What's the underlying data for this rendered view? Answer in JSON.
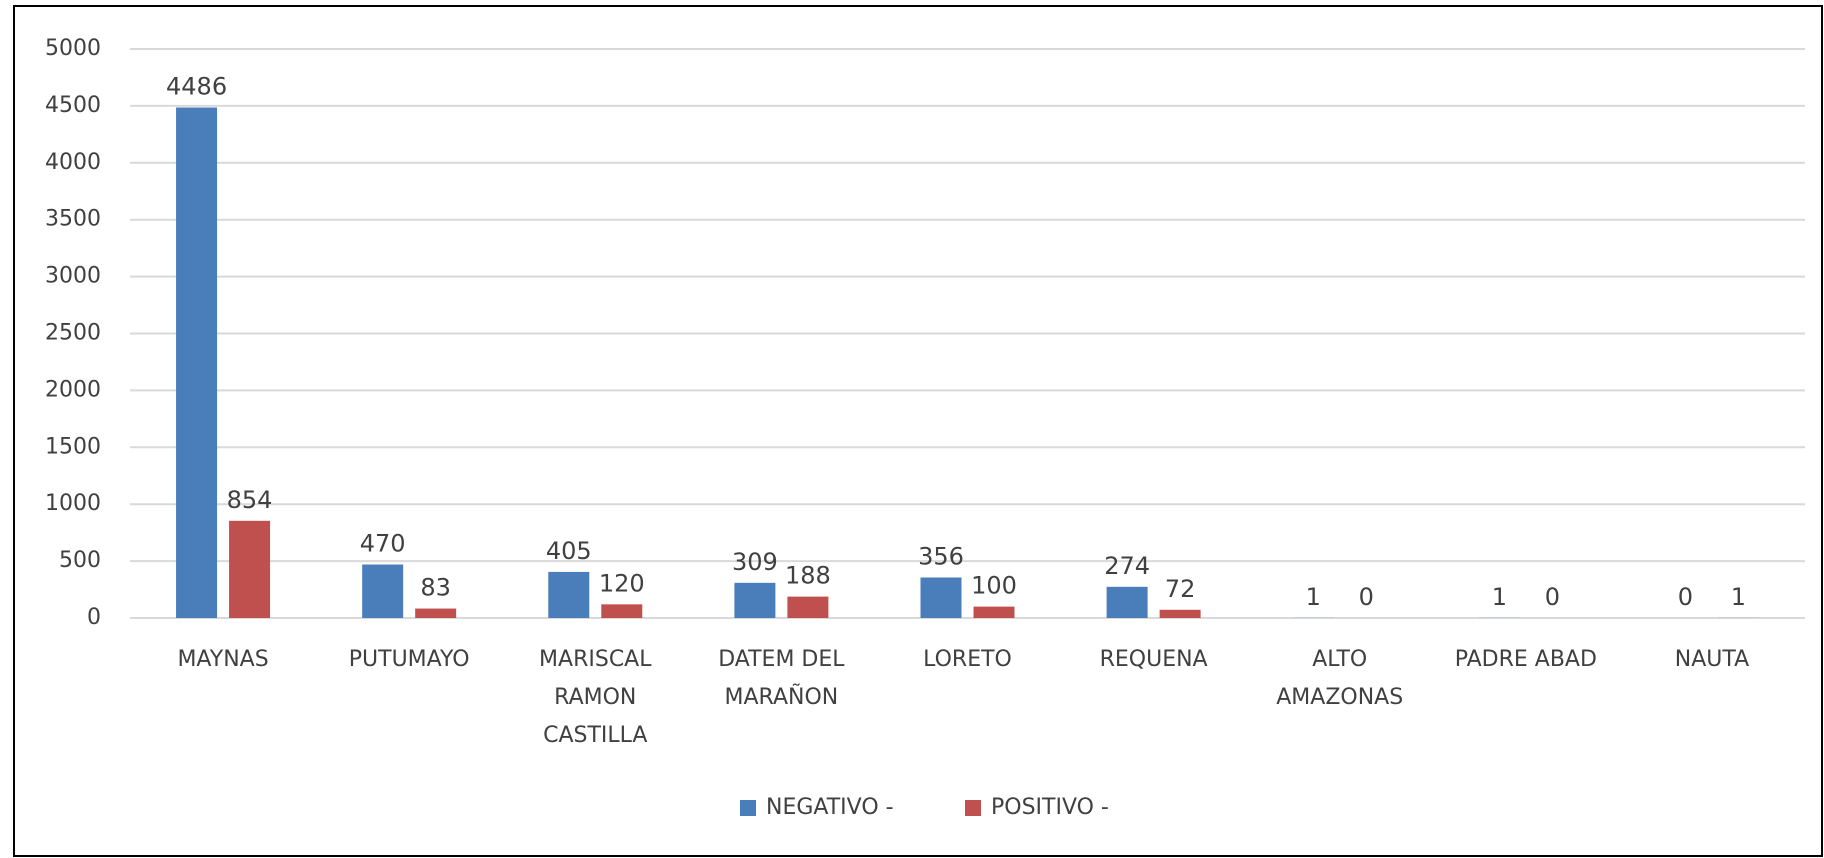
{
  "chart_data": {
    "type": "bar",
    "categories": [
      "MAYNAS",
      "PUTUMAYO",
      "MARISCAL RAMON CASTILLA",
      "DATEM DEL MARAÑON",
      "LORETO",
      "REQUENA",
      "ALTO AMAZONAS",
      "PADRE ABAD",
      "NAUTA"
    ],
    "series": [
      {
        "name": "NEGATIVO -",
        "color": "#4a7ebb",
        "values": [
          4486,
          470,
          405,
          309,
          356,
          274,
          1,
          1,
          0
        ]
      },
      {
        "name": "POSITIVO -",
        "color": "#c0504d",
        "values": [
          854,
          83,
          120,
          188,
          100,
          72,
          0,
          0,
          1
        ]
      }
    ],
    "ylim": [
      0,
      5000
    ],
    "yticks": [
      0,
      500,
      1000,
      1500,
      2000,
      2500,
      3000,
      3500,
      4000,
      4500,
      5000
    ],
    "grid": true,
    "legend": "bottom"
  }
}
